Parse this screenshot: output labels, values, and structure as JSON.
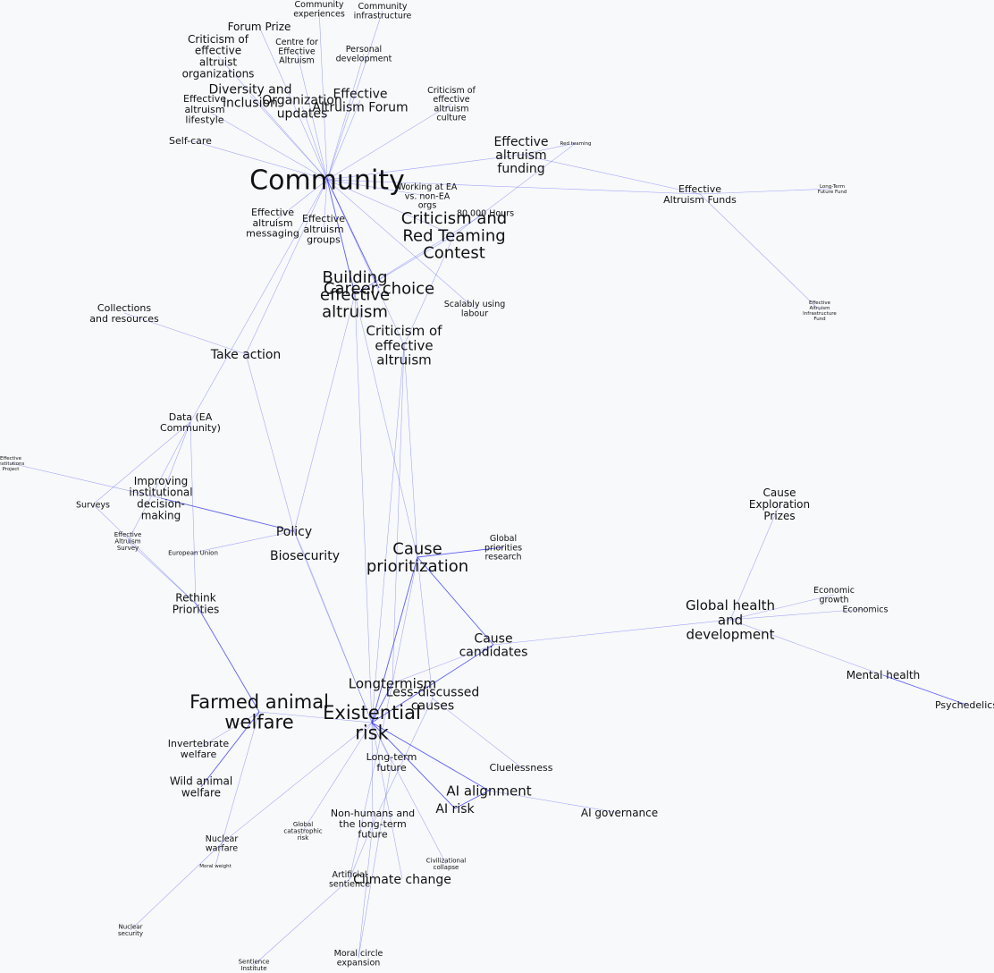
{
  "edge_color": "#3a3af0",
  "background": "#f7f9fb",
  "nodes": [
    {
      "id": "community",
      "label": "Community",
      "rank": "xl"
    },
    {
      "id": "building-ea",
      "label": "Building effective altruism",
      "rank": "l"
    },
    {
      "id": "criticism-red-teaming",
      "label": "Criticism and Red Teaming Contest",
      "rank": "l"
    },
    {
      "id": "career-choice",
      "label": "Career choice",
      "rank": "l"
    },
    {
      "id": "criticism-ea",
      "label": "Criticism of effective altruism",
      "rank": "m"
    },
    {
      "id": "cause-prioritization",
      "label": "Cause prioritization",
      "rank": "l"
    },
    {
      "id": "existential-risk",
      "label": "Existential risk",
      "rank": "xl2"
    },
    {
      "id": "farmed-animal-welfare",
      "label": "Farmed animal welfare",
      "rank": "xl2"
    },
    {
      "id": "longtermism",
      "label": "Longtermism",
      "rank": "m"
    },
    {
      "id": "less-discussed-causes",
      "label": "Less-discussed causes",
      "rank": "s"
    },
    {
      "id": "ai-alignment",
      "label": "AI alignment",
      "rank": "m"
    },
    {
      "id": "ai-risk",
      "label": "AI risk",
      "rank": "s"
    },
    {
      "id": "global-health",
      "label": "Global health and development",
      "rank": "m"
    },
    {
      "id": "cause-candidates",
      "label": "Cause candidates",
      "rank": "s"
    },
    {
      "id": "climate-change",
      "label": "Climate change",
      "rank": "s"
    },
    {
      "id": "ea-forum",
      "label": "Effective Altruism Forum",
      "rank": "s"
    },
    {
      "id": "ea-funding",
      "label": "Effective altruism funding",
      "rank": "s"
    },
    {
      "id": "org-updates",
      "label": "Organization updates",
      "rank": "s"
    },
    {
      "id": "diversity-inclusion",
      "label": "Diversity and inclusion",
      "rank": "s"
    },
    {
      "id": "policy",
      "label": "Policy",
      "rank": "s"
    },
    {
      "id": "biosecurity",
      "label": "Biosecurity",
      "rank": "s"
    },
    {
      "id": "take-action",
      "label": "Take action",
      "rank": "s"
    },
    {
      "id": "improving-idm",
      "label": "Improving institutional decision-making",
      "rank": "xs"
    },
    {
      "id": "rethink-priorities",
      "label": "Rethink Priorities",
      "rank": "xs"
    },
    {
      "id": "wild-animal-welfare",
      "label": "Wild animal welfare",
      "rank": "xs"
    },
    {
      "id": "mental-health",
      "label": "Mental health",
      "rank": "xs"
    },
    {
      "id": "cause-exploration-prizes",
      "label": "Cause Exploration Prizes",
      "rank": "xs"
    },
    {
      "id": "forum-prize",
      "label": "Forum Prize",
      "rank": "xs"
    },
    {
      "id": "criticism-ea-orgs",
      "label": "Criticism of effective altruist organizations",
      "rank": "xs"
    },
    {
      "id": "self-care",
      "label": "Self-care",
      "rank": "xxs"
    },
    {
      "id": "ea-messaging",
      "label": "Effective altruism messaging",
      "rank": "xxs"
    },
    {
      "id": "ea-groups",
      "label": "Effective altruism groups",
      "rank": "xxs"
    },
    {
      "id": "ea-lifestyle",
      "label": "Effective altruism lifestyle",
      "rank": "xxs"
    },
    {
      "id": "collections-resources",
      "label": "Collections and resources",
      "rank": "xxs"
    },
    {
      "id": "data-ea",
      "label": "Data (EA Community)",
      "rank": "xxs"
    },
    {
      "id": "ea-funds",
      "label": "Effective Altruism Funds",
      "rank": "xxs"
    },
    {
      "id": "invertebrate-welfare",
      "label": "Invertebrate welfare",
      "rank": "xxs"
    },
    {
      "id": "long-term-future",
      "label": "Long-term future",
      "rank": "xxs"
    },
    {
      "id": "nonhumans-ltf",
      "label": "Non-humans and the long-term future",
      "rank": "xxs"
    },
    {
      "id": "cluelessness",
      "label": "Cluelessness",
      "rank": "xxs"
    },
    {
      "id": "ai-governance",
      "label": "AI governance",
      "rank": "xs"
    },
    {
      "id": "psychedelics",
      "label": "Psychedelics",
      "rank": "xxs"
    },
    {
      "id": "economic-growth",
      "label": "Economic growth",
      "rank": "xxxs"
    },
    {
      "id": "economics",
      "label": "Economics",
      "rank": "xxxs"
    },
    {
      "id": "cea",
      "label": "Centre for Effective Altruism",
      "rank": "xxxs"
    },
    {
      "id": "personal-development",
      "label": "Personal development",
      "rank": "xxxs"
    },
    {
      "id": "community-experiences",
      "label": "Community experiences",
      "rank": "xxxs"
    },
    {
      "id": "community-infrastructure",
      "label": "Community infrastructure",
      "rank": "xxxs"
    },
    {
      "id": "criticism-ea-culture",
      "label": "Criticism of effective altruism culture",
      "rank": "xxxs"
    },
    {
      "id": "working-ea-nonea",
      "label": "Working at EA vs. non-EA orgs",
      "rank": "xxxs"
    },
    {
      "id": "80000-hours",
      "label": "80,000 Hours",
      "rank": "xxxs"
    },
    {
      "id": "scalably-using-labour",
      "label": "Scalably using labour",
      "rank": "xxxs"
    },
    {
      "id": "global-priorities-research",
      "label": "Global priorities research",
      "rank": "xxxs"
    },
    {
      "id": "surveys",
      "label": "Surveys",
      "rank": "xxxs"
    },
    {
      "id": "ea-survey",
      "label": "Effective Altruism Survey",
      "rank": "tiny"
    },
    {
      "id": "european-union",
      "label": "European Union",
      "rank": "tiny"
    },
    {
      "id": "nuclear-warfare",
      "label": "Nuclear warfare",
      "rank": "xxxs"
    },
    {
      "id": "artificial-sentience",
      "label": "Artificial sentience",
      "rank": "xxxs"
    },
    {
      "id": "moral-circle-expansion",
      "label": "Moral circle expansion",
      "rank": "xxxs"
    },
    {
      "id": "civilizational-collapse",
      "label": "Civilizational collapse",
      "rank": "tiny"
    },
    {
      "id": "global-catastrophic-risk",
      "label": "Global catastrophic risk",
      "rank": "tiny"
    },
    {
      "id": "nuclear-security",
      "label": "Nuclear security",
      "rank": "tiny"
    },
    {
      "id": "sentience-institute",
      "label": "Sentience Institute",
      "rank": "tiny"
    },
    {
      "id": "moral-weight",
      "label": "Moral weight",
      "rank": "micro"
    },
    {
      "id": "red-teaming",
      "label": "Red teaming",
      "rank": "micro"
    },
    {
      "id": "ltff",
      "label": "Long-Term Future Fund",
      "rank": "micro"
    },
    {
      "id": "eaif",
      "label": "Effective Altruism Infrastructure Fund",
      "rank": "micro"
    },
    {
      "id": "eip",
      "label": "Effective Institutions Project",
      "rank": "micro"
    }
  ],
  "edges": [
    [
      "community",
      "building-ea",
      1
    ],
    [
      "community",
      "career-choice",
      1
    ],
    [
      "community",
      "criticism-red-teaming",
      0.5
    ],
    [
      "community",
      "criticism-ea",
      0.5
    ],
    [
      "community",
      "ea-forum",
      0.5
    ],
    [
      "community",
      "org-updates",
      0.5
    ],
    [
      "community",
      "diversity-inclusion",
      0.5
    ],
    [
      "community",
      "forum-prize",
      0.5
    ],
    [
      "community",
      "criticism-ea-orgs",
      0.5
    ],
    [
      "community",
      "self-care",
      0.5
    ],
    [
      "community",
      "ea-lifestyle",
      0.5
    ],
    [
      "community",
      "ea-messaging",
      0.5
    ],
    [
      "community",
      "ea-groups",
      0.5
    ],
    [
      "community",
      "ea-funding",
      0.5
    ],
    [
      "community",
      "cea",
      0.5
    ],
    [
      "community",
      "personal-development",
      0.5
    ],
    [
      "community",
      "community-experiences",
      0.5
    ],
    [
      "community",
      "community-infrastructure",
      0.5
    ],
    [
      "community",
      "criticism-ea-culture",
      0.5
    ],
    [
      "community",
      "working-ea-nonea",
      0.5
    ],
    [
      "community",
      "take-action",
      0.5
    ],
    [
      "community",
      "data-ea",
      0.5
    ],
    [
      "community",
      "scalably-using-labour",
      0.5
    ],
    [
      "community",
      "ea-funds",
      0.5
    ],
    [
      "ea-funding",
      "red-teaming",
      0.5
    ],
    [
      "ea-funding",
      "ea-funds",
      0.5
    ],
    [
      "ea-funds",
      "ltff",
      0.5
    ],
    [
      "ea-funds",
      "eaif",
      0.5
    ],
    [
      "building-ea",
      "criticism-red-teaming",
      0.5
    ],
    [
      "building-ea",
      "80000-hours",
      0.5
    ],
    [
      "building-ea",
      "cause-prioritization",
      0.5
    ],
    [
      "building-ea",
      "existential-risk",
      0.5
    ],
    [
      "building-ea",
      "policy",
      0.5
    ],
    [
      "criticism-red-teaming",
      "criticism-ea",
      0.5
    ],
    [
      "criticism-red-teaming",
      "red-teaming",
      0.5
    ],
    [
      "criticism-ea",
      "cause-prioritization",
      0.5
    ],
    [
      "criticism-ea",
      "longtermism",
      0.5
    ],
    [
      "take-action",
      "collections-resources",
      0.5
    ],
    [
      "take-action",
      "policy",
      0.5
    ],
    [
      "data-ea",
      "surveys",
      0.5
    ],
    [
      "data-ea",
      "ea-survey",
      0.5
    ],
    [
      "data-ea",
      "improving-idm",
      0.5
    ],
    [
      "data-ea",
      "rethink-priorities",
      0.5
    ],
    [
      "improving-idm",
      "eip",
      0.5
    ],
    [
      "improving-idm",
      "policy",
      1
    ],
    [
      "policy",
      "european-union",
      0.5
    ],
    [
      "policy",
      "biosecurity",
      0.5
    ],
    [
      "policy",
      "existential-risk",
      0.5
    ],
    [
      "surveys",
      "rethink-priorities",
      0.5
    ],
    [
      "ea-survey",
      "rethink-priorities",
      0.5
    ],
    [
      "rethink-priorities",
      "farmed-animal-welfare",
      1
    ],
    [
      "farmed-animal-welfare",
      "invertebrate-welfare",
      0.5
    ],
    [
      "farmed-animal-welfare",
      "wild-animal-welfare",
      1
    ],
    [
      "farmed-animal-welfare",
      "nuclear-warfare",
      0.5
    ],
    [
      "farmed-animal-welfare",
      "existential-risk",
      0.5
    ],
    [
      "cause-prioritization",
      "global-priorities-research",
      1
    ],
    [
      "cause-prioritization",
      "cause-candidates",
      1
    ],
    [
      "cause-prioritization",
      "existential-risk",
      1
    ],
    [
      "cause-prioritization",
      "longtermism",
      0.5
    ],
    [
      "cause-prioritization",
      "less-discussed-causes",
      0.5
    ],
    [
      "cause-candidates",
      "global-health",
      0.5
    ],
    [
      "cause-candidates",
      "longtermism",
      0.5
    ],
    [
      "cause-candidates",
      "existential-risk",
      1
    ],
    [
      "global-health",
      "cause-exploration-prizes",
      0.5
    ],
    [
      "global-health",
      "economic-growth",
      0.5
    ],
    [
      "global-health",
      "economics",
      0.5
    ],
    [
      "global-health",
      "mental-health",
      0.5
    ],
    [
      "mental-health",
      "psychedelics",
      1
    ],
    [
      "existential-risk",
      "longtermism",
      1
    ],
    [
      "existential-risk",
      "long-term-future",
      0.5
    ],
    [
      "existential-risk",
      "ai-alignment",
      1
    ],
    [
      "existential-risk",
      "ai-risk",
      1
    ],
    [
      "existential-risk",
      "global-catastrophic-risk",
      0.5
    ],
    [
      "existential-risk",
      "civilizational-collapse",
      0.5
    ],
    [
      "existential-risk",
      "climate-change",
      0.5
    ],
    [
      "existential-risk",
      "nonhumans-ltf",
      0.5
    ],
    [
      "existential-risk",
      "nuclear-warfare",
      0.5
    ],
    [
      "existential-risk",
      "biosecurity",
      0.5
    ],
    [
      "less-discussed-causes",
      "cluelessness",
      0.5
    ],
    [
      "less-discussed-causes",
      "nonhumans-ltf",
      0.5
    ],
    [
      "ai-alignment",
      "ai-governance",
      0.5
    ],
    [
      "ai-alignment",
      "ai-risk",
      1
    ],
    [
      "nonhumans-ltf",
      "artificial-sentience",
      0.5
    ],
    [
      "nonhumans-ltf",
      "moral-circle-expansion",
      0.5
    ],
    [
      "artificial-sentience",
      "sentience-institute",
      0.5
    ],
    [
      "artificial-sentience",
      "longtermism",
      0.5
    ],
    [
      "nuclear-warfare",
      "nuclear-security",
      0.5
    ],
    [
      "nuclear-warfare",
      "moral-weight",
      0.5
    ],
    [
      "long-term-future",
      "moral-circle-expansion",
      0.5
    ],
    [
      "criticism-ea",
      "existential-risk",
      0.5
    ]
  ]
}
